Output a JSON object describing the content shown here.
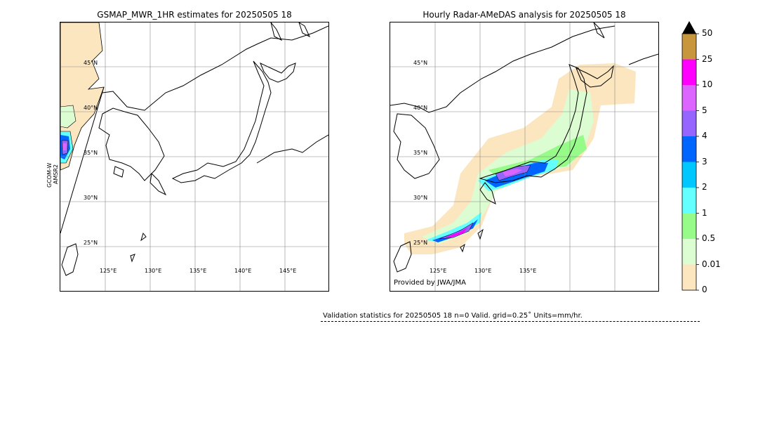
{
  "left_map": {
    "title": "GSMAP_MWR_1HR estimates for 20250505 18",
    "side_label_1": "GCOM-W",
    "side_label_2": "AMSR2",
    "lat_labels": [
      "45°N",
      "40°N",
      "35°N",
      "30°N",
      "25°N"
    ],
    "lon_labels": [
      "125°E",
      "130°E",
      "135°E",
      "140°E",
      "145°E"
    ]
  },
  "right_map": {
    "title": "Hourly Radar-AMeDAS analysis for 20250505 18",
    "lat_labels": [
      "45°N",
      "40°N",
      "35°N",
      "30°N",
      "25°N"
    ],
    "lon_labels": [
      "125°E",
      "130°E",
      "135°E"
    ],
    "credit": "Provided by JWA/JMA"
  },
  "colorbar": {
    "ticks": [
      "50",
      "25",
      "10",
      "5",
      "4",
      "3",
      "2",
      "1",
      "0.5",
      "0.01",
      "0"
    ],
    "colors": [
      "#fce6bf",
      "#dcfcd2",
      "#97fb89",
      "#64ffff",
      "#00c8ff",
      "#0064ff",
      "#9664ff",
      "#dc64ff",
      "#ff00ff",
      "#c8963c"
    ],
    "overflow_color": "#000000",
    "units": "mm/hr"
  },
  "stats": {
    "text": "Validation statistics for 20250505 18  n=0 Valid. grid=0.25˚ Units=mm/hr."
  },
  "chart_data": [
    {
      "type": "heatmap",
      "title": "GSMAP_MWR_1HR estimates for 20250505 18",
      "xlabel": "",
      "ylabel": "",
      "x_ticks": [
        "125°E",
        "130°E",
        "135°E",
        "140°E",
        "145°E"
      ],
      "y_ticks": [
        "45°N",
        "40°N",
        "35°N",
        "30°N",
        "25°N"
      ],
      "xlim": [
        120,
        150
      ],
      "ylim": [
        20,
        50
      ],
      "grid": true,
      "color_levels": [
        0,
        0.01,
        0.5,
        1,
        2,
        3,
        4,
        5,
        10,
        25,
        50
      ],
      "note_swath": "GCOM-W AMSR2"
    },
    {
      "type": "heatmap",
      "title": "Hourly Radar-AMeDAS analysis for 20250505 18",
      "xlabel": "",
      "ylabel": "",
      "x_ticks": [
        "125°E",
        "130°E",
        "135°E"
      ],
      "y_ticks": [
        "45°N",
        "40°N",
        "35°N",
        "30°N",
        "25°N"
      ],
      "xlim": [
        120,
        150
      ],
      "ylim": [
        20,
        50
      ],
      "grid": true,
      "color_levels": [
        0,
        0.01,
        0.5,
        1,
        2,
        3,
        4,
        5,
        10,
        25,
        50
      ]
    }
  ]
}
